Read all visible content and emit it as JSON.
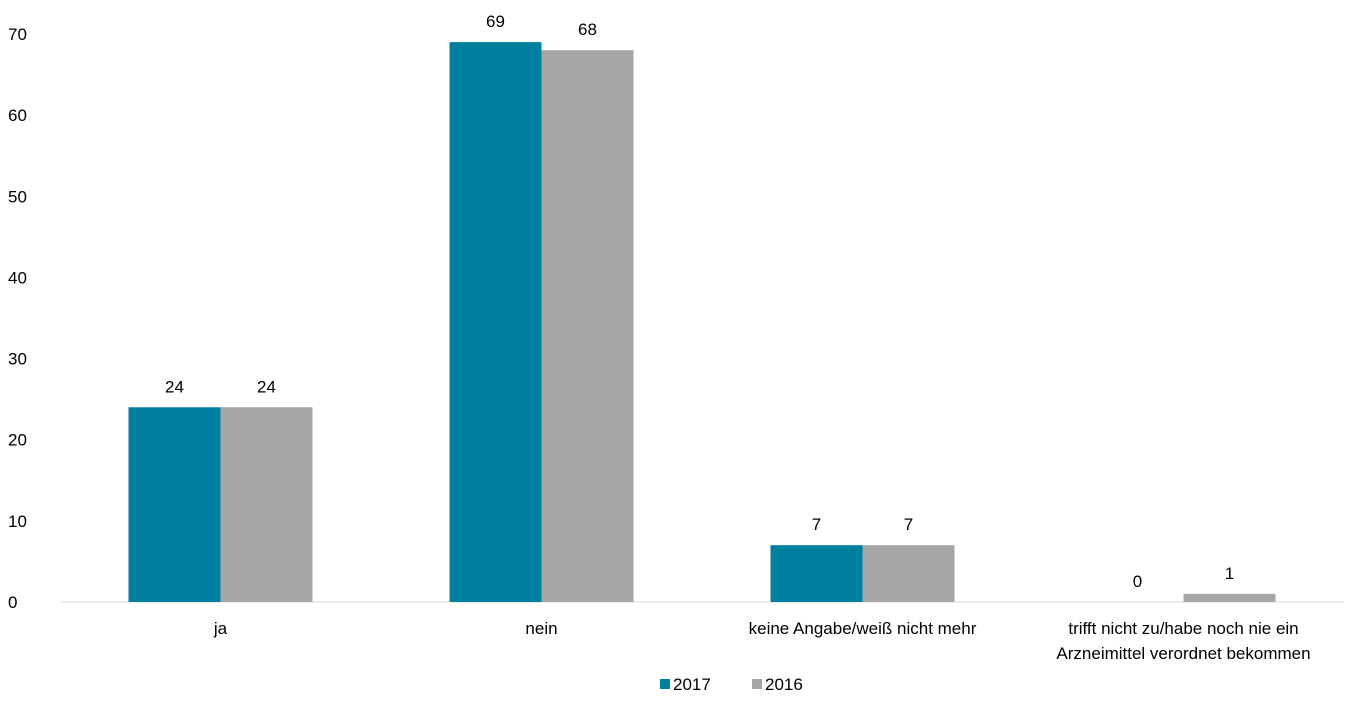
{
  "chart_data": {
    "type": "bar",
    "categories": [
      "ja",
      "nein",
      "keine Angabe/weiß nicht mehr",
      "trifft nicht zu/habe noch nie ein Arzneimittel verordnet bekommen"
    ],
    "series": [
      {
        "name": "2017",
        "values": [
          24,
          69,
          7,
          0
        ],
        "color": "#00809F"
      },
      {
        "name": "2016",
        "values": [
          24,
          68,
          7,
          1
        ],
        "color": "#A6A6A6"
      }
    ],
    "yticks": [
      0,
      10,
      20,
      30,
      40,
      50,
      60,
      70
    ],
    "ylim": [
      0,
      70
    ],
    "grid": false,
    "legend_position": "bottom"
  }
}
